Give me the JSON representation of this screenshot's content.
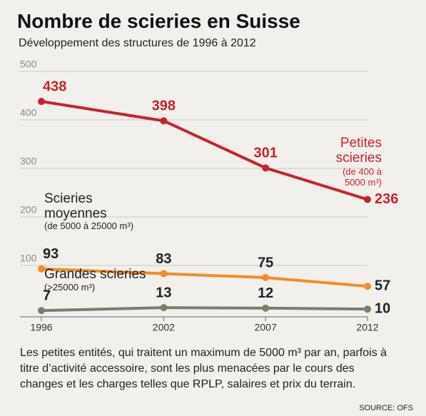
{
  "chart_data": {
    "type": "line",
    "title": "Nombre de scieries en Suisse",
    "subtitle": "Développement des structures de 1996 à 2012",
    "x": [
      1996,
      2002,
      2007,
      2012
    ],
    "xlim": [
      1996,
      2012
    ],
    "xticks": [
      1996,
      2002,
      2007,
      2012
    ],
    "ylim": [
      0,
      500
    ],
    "yticks": [
      100,
      200,
      300,
      400,
      500
    ],
    "grid": true,
    "series": [
      {
        "name": "Petites scieries",
        "note": "(de 400 à 5000 m³)",
        "color": "#c8232c",
        "label_color": "#c8232c",
        "values": [
          438,
          398,
          301,
          236
        ]
      },
      {
        "name": "Scieries moyennes",
        "note": "(de 5000 à 25000 m³)",
        "color": "#f28c28",
        "label_color": "#222222",
        "values": [
          93,
          83,
          75,
          57
        ]
      },
      {
        "name": "Grandes scieries",
        "note": "(>25000 m³)",
        "color": "#7b7e69",
        "label_color": "#222222",
        "values": [
          7,
          13,
          12,
          10
        ]
      }
    ],
    "footnote": "Les petites entités, qui traitent un maximum de 5000 m³ par an, parfois à titre d’activité accessoire, sont les plus menacées par le cours des changes et les charges telles que RPLP, salaires et prix du terrain.",
    "source": "SOURCE: OFS"
  }
}
